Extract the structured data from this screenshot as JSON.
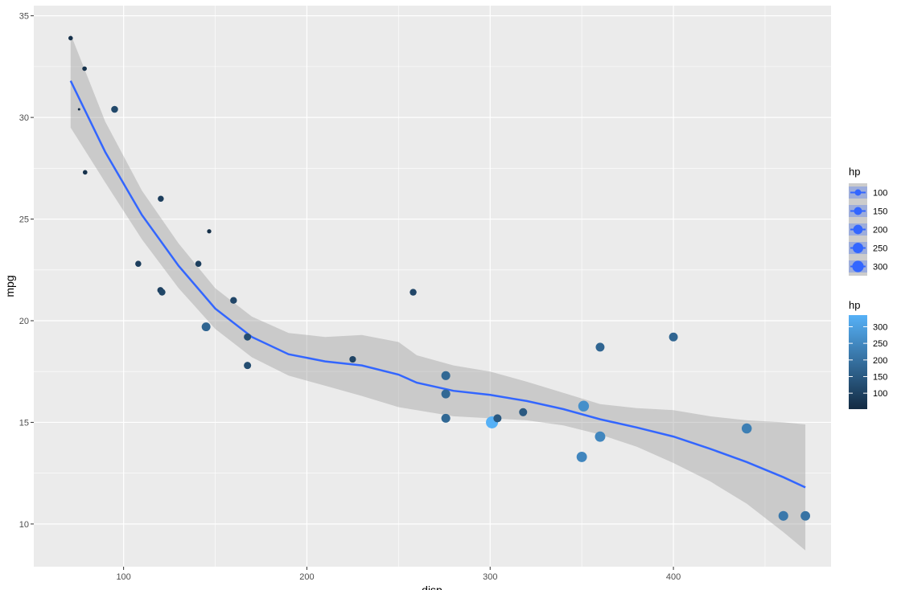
{
  "chart_data": {
    "type": "scatter",
    "title": "",
    "xlabel": "disp",
    "ylabel": "mpg",
    "xlim": [
      51,
      486
    ],
    "ylim": [
      7.9,
      35.5
    ],
    "x_ticks": [
      100,
      200,
      300,
      400
    ],
    "y_ticks": [
      10,
      15,
      20,
      25,
      30,
      35
    ],
    "grid": true,
    "points": [
      {
        "disp": 71.1,
        "mpg": 33.9,
        "hp": 65
      },
      {
        "disp": 75.7,
        "mpg": 30.4,
        "hp": 52
      },
      {
        "disp": 78.7,
        "mpg": 32.4,
        "hp": 66
      },
      {
        "disp": 79.0,
        "mpg": 27.3,
        "hp": 66
      },
      {
        "disp": 95.1,
        "mpg": 30.4,
        "hp": 113
      },
      {
        "disp": 108.0,
        "mpg": 22.8,
        "hp": 93
      },
      {
        "disp": 120.1,
        "mpg": 21.5,
        "hp": 97
      },
      {
        "disp": 120.3,
        "mpg": 26.0,
        "hp": 91
      },
      {
        "disp": 121.0,
        "mpg": 21.4,
        "hp": 109
      },
      {
        "disp": 140.8,
        "mpg": 22.8,
        "hp": 95
      },
      {
        "disp": 145.0,
        "mpg": 19.7,
        "hp": 175
      },
      {
        "disp": 146.7,
        "mpg": 24.4,
        "hp": 62
      },
      {
        "disp": 160.0,
        "mpg": 21.0,
        "hp": 110
      },
      {
        "disp": 167.6,
        "mpg": 19.2,
        "hp": 123
      },
      {
        "disp": 167.6,
        "mpg": 17.8,
        "hp": 123
      },
      {
        "disp": 225.0,
        "mpg": 18.1,
        "hp": 105
      },
      {
        "disp": 258.0,
        "mpg": 21.4,
        "hp": 110
      },
      {
        "disp": 275.8,
        "mpg": 16.4,
        "hp": 180
      },
      {
        "disp": 275.8,
        "mpg": 17.3,
        "hp": 180
      },
      {
        "disp": 275.8,
        "mpg": 15.2,
        "hp": 180
      },
      {
        "disp": 301.0,
        "mpg": 15.0,
        "hp": 335
      },
      {
        "disp": 304.0,
        "mpg": 15.2,
        "hp": 150
      },
      {
        "disp": 318.0,
        "mpg": 15.5,
        "hp": 150
      },
      {
        "disp": 350.0,
        "mpg": 13.3,
        "hp": 245
      },
      {
        "disp": 351.0,
        "mpg": 15.8,
        "hp": 264
      },
      {
        "disp": 360.0,
        "mpg": 18.7,
        "hp": 175
      },
      {
        "disp": 360.0,
        "mpg": 14.3,
        "hp": 245
      },
      {
        "disp": 400.0,
        "mpg": 19.2,
        "hp": 175
      },
      {
        "disp": 440.0,
        "mpg": 14.7,
        "hp": 230
      },
      {
        "disp": 460.0,
        "mpg": 10.4,
        "hp": 215
      },
      {
        "disp": 472.0,
        "mpg": 10.4,
        "hp": 205
      }
    ],
    "smooth": {
      "color": "#3366ff",
      "band_color": "#999999",
      "x": [
        71.1,
        90,
        110,
        130,
        150,
        170,
        190,
        210,
        230,
        250,
        260,
        280,
        300,
        320,
        340,
        360,
        380,
        400,
        420,
        440,
        460,
        472
      ],
      "y": [
        31.8,
        28.3,
        25.2,
        22.7,
        20.6,
        19.2,
        18.35,
        18.0,
        17.8,
        17.35,
        16.95,
        16.55,
        16.35,
        16.05,
        15.65,
        15.15,
        14.75,
        14.3,
        13.7,
        13.05,
        12.3,
        11.8
      ],
      "ymin": [
        29.5,
        26.8,
        24.0,
        21.6,
        19.6,
        18.2,
        17.3,
        16.8,
        16.3,
        15.75,
        15.6,
        15.3,
        15.2,
        15.1,
        14.85,
        14.4,
        13.8,
        13.0,
        12.1,
        11.0,
        9.6,
        8.7
      ],
      "ymax": [
        34.1,
        29.8,
        26.4,
        23.8,
        21.6,
        20.2,
        19.4,
        19.2,
        19.3,
        18.95,
        18.3,
        17.8,
        17.5,
        17.0,
        16.45,
        15.9,
        15.7,
        15.6,
        15.3,
        15.1,
        15.0,
        14.9
      ]
    },
    "size_legend": {
      "title": "hp",
      "labels": [
        "100",
        "150",
        "200",
        "250",
        "300"
      ],
      "values": [
        100,
        150,
        200,
        250,
        300
      ],
      "key_color": "#3366ff"
    },
    "color_legend": {
      "title": "hp",
      "labels": [
        "100",
        "150",
        "200",
        "250",
        "300"
      ],
      "values": [
        100,
        150,
        200,
        250,
        300
      ],
      "range": [
        52,
        335
      ],
      "low_color": "#132b43",
      "high_color": "#56b1f7"
    },
    "panel_color": "#ebebeb",
    "grid_color": "#ffffff"
  }
}
